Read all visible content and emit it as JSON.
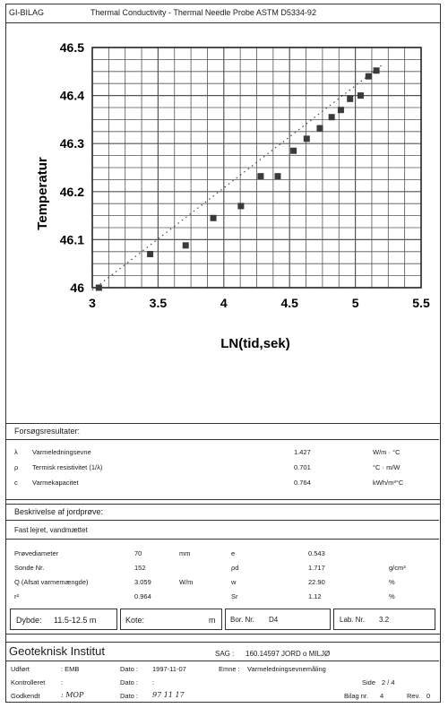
{
  "header": {
    "company_code": "GI-BILAG",
    "title": "Thermal Conductivity - Thermal Needle Probe ASTM D5334-92"
  },
  "chart_data": {
    "type": "scatter",
    "xlabel": "LN(tid,sek)",
    "ylabel": "Temperatur",
    "xlim": [
      3,
      5.5
    ],
    "ylim": [
      46,
      46.5
    ],
    "x_ticks": [
      "3",
      "3.5",
      "4",
      "4.5",
      "5",
      "5.5"
    ],
    "y_ticks": [
      "46",
      "46.1",
      "46.2",
      "46.3",
      "46.4",
      "46.5"
    ],
    "grid": true,
    "points": [
      {
        "x": 3.05,
        "y": 46.0
      },
      {
        "x": 3.44,
        "y": 46.07
      },
      {
        "x": 3.71,
        "y": 46.088
      },
      {
        "x": 3.92,
        "y": 46.145
      },
      {
        "x": 4.13,
        "y": 46.17
      },
      {
        "x": 4.28,
        "y": 46.232
      },
      {
        "x": 4.41,
        "y": 46.232
      },
      {
        "x": 4.53,
        "y": 46.285
      },
      {
        "x": 4.63,
        "y": 46.31
      },
      {
        "x": 4.73,
        "y": 46.332
      },
      {
        "x": 4.82,
        "y": 46.355
      },
      {
        "x": 4.89,
        "y": 46.37
      },
      {
        "x": 4.96,
        "y": 46.393
      },
      {
        "x": 5.04,
        "y": 46.4
      },
      {
        "x": 5.1,
        "y": 46.44
      },
      {
        "x": 5.16,
        "y": 46.452
      }
    ],
    "trendline": [
      {
        "x": 3.0,
        "y": 45.995
      },
      {
        "x": 5.2,
        "y": 46.463
      }
    ]
  },
  "results": {
    "heading": "Forsøgsresultater:",
    "rows": [
      {
        "symbol": "λ",
        "label": "Varmeledningsevne",
        "value": "1.427",
        "unit": "W/m · °C"
      },
      {
        "symbol": "ρ",
        "label": "Termisk resistivitet (1/λ)",
        "value": "0.701",
        "unit": "°C · m/W"
      },
      {
        "symbol": "c",
        "label": "Varmekapacitet",
        "value": "0.764",
        "unit": "kWh/m³°C"
      }
    ]
  },
  "soil": {
    "heading": "Beskrivelse af jordprøve:",
    "description": "Fast lejret, vandmættet",
    "left_rows": [
      {
        "label": "Prøvediameter",
        "value": "70",
        "unit": "mm"
      },
      {
        "label": "Sonde Nr.",
        "value": "152",
        "unit": ""
      },
      {
        "label": "Q (Afsat varmemængde)",
        "value": "3.059",
        "unit": "W/m"
      },
      {
        "label": "r²",
        "value": "0.964",
        "unit": ""
      }
    ],
    "right_rows": [
      {
        "label": "e",
        "value": "0.543",
        "unit": ""
      },
      {
        "label": "ρd",
        "value": "1.717",
        "unit": "g/cm³"
      },
      {
        "label": "w",
        "value": "22.90",
        "unit": "%"
      },
      {
        "label": "Sr",
        "value": "1.12",
        "unit": "%"
      }
    ],
    "depth_label": "Dybde:",
    "depth_value": "11.5-12.5 m",
    "kote_label": "Kote:",
    "kote_unit": "m",
    "bor_label": "Bor. Nr.",
    "bor_value": "D4",
    "lab_label": "Lab. Nr.",
    "lab_value": "3.2"
  },
  "footer": {
    "institute": "Geoteknisk Institut",
    "sag_label": "SAG :",
    "sag_value": "160.14597 JORD o MILJØ",
    "udfort_label": "Udført",
    "udfort_value": ": EMB",
    "dato_label": "Dato :",
    "dato1": "1997-11-07",
    "emne_label": "Emne :",
    "emne_value": "Varmeledningsevnemåling",
    "kontrolleret_label": "Kontrolleret",
    "kontrolleret_value": ":",
    "dato2": ":",
    "godkendt_label": "Godkendt",
    "godkendt_value": ": MOP",
    "dato3": "97 11 17",
    "side_label": "Side",
    "side_value": "2 / 4",
    "bilag_label": "Bilag nr.",
    "bilag_value": "4",
    "rev_label": "Rev.",
    "rev_value": "0"
  }
}
